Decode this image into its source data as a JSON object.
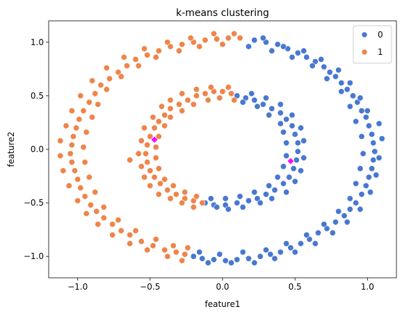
{
  "chart_data": {
    "type": "scatter",
    "title": "k-means clustering",
    "xlabel": "feature1",
    "ylabel": "feature2",
    "xlim": [
      -1.2,
      1.2
    ],
    "ylim": [
      -1.2,
      1.2
    ],
    "xticks": [
      -1.0,
      -0.5,
      0.0,
      0.5,
      1.0
    ],
    "yticks": [
      -1.0,
      -0.5,
      0.0,
      0.5,
      1.0
    ],
    "xtick_labels": [
      "−1.0",
      "−0.5",
      "0.0",
      "0.5",
      "1.0"
    ],
    "ytick_labels": [
      "−1.0",
      "−0.5",
      "0.0",
      "0.5",
      "1.0"
    ],
    "grid": false,
    "legend_position": "top-right",
    "series": [
      {
        "name": "0",
        "color": "#4878d0",
        "points": [
          [
            0.22,
            1.02
          ],
          [
            0.3,
            1.0
          ],
          [
            0.38,
            0.98
          ],
          [
            0.45,
            0.94
          ],
          [
            0.52,
            0.9
          ],
          [
            0.58,
            0.86
          ],
          [
            0.64,
            0.82
          ],
          [
            0.7,
            0.77
          ],
          [
            0.74,
            0.72
          ],
          [
            0.78,
            0.68
          ],
          [
            0.82,
            0.62
          ],
          [
            0.86,
            0.56
          ],
          [
            0.9,
            0.5
          ],
          [
            0.93,
            0.44
          ],
          [
            0.96,
            0.36
          ],
          [
            0.99,
            0.3
          ],
          [
            1.01,
            0.22
          ],
          [
            1.03,
            0.14
          ],
          [
            1.04,
            0.06
          ],
          [
            1.05,
            -0.02
          ],
          [
            1.04,
            -0.1
          ],
          [
            1.03,
            -0.18
          ],
          [
            1.01,
            -0.26
          ],
          [
            0.99,
            -0.34
          ],
          [
            0.96,
            -0.42
          ],
          [
            0.92,
            -0.5
          ],
          [
            0.88,
            -0.56
          ],
          [
            0.84,
            -0.62
          ],
          [
            0.78,
            -0.68
          ],
          [
            0.72,
            -0.74
          ],
          [
            0.66,
            -0.78
          ],
          [
            0.6,
            -0.84
          ],
          [
            0.54,
            -0.88
          ],
          [
            0.47,
            -0.92
          ],
          [
            0.4,
            -0.96
          ],
          [
            0.33,
            -0.98
          ],
          [
            0.26,
            -1.0
          ],
          [
            0.18,
            -1.02
          ],
          [
            0.1,
            -1.03
          ],
          [
            0.02,
            -1.04
          ],
          [
            -0.06,
            -1.03
          ],
          [
            -0.14,
            -1.02
          ],
          [
            -0.2,
            -1.0
          ],
          [
            0.28,
            1.04
          ],
          [
            0.42,
            0.96
          ],
          [
            0.56,
            0.92
          ],
          [
            0.68,
            0.84
          ],
          [
            0.8,
            0.74
          ],
          [
            0.88,
            0.62
          ],
          [
            0.95,
            0.48
          ],
          [
            1.0,
            0.36
          ],
          [
            1.08,
            0.24
          ],
          [
            1.1,
            0.1
          ],
          [
            1.08,
            -0.08
          ],
          [
            1.06,
            -0.24
          ],
          [
            1.02,
            -0.4
          ],
          [
            0.95,
            -0.56
          ],
          [
            0.86,
            -0.68
          ],
          [
            0.76,
            -0.78
          ],
          [
            0.64,
            -0.88
          ],
          [
            0.5,
            -0.96
          ],
          [
            0.36,
            -1.02
          ],
          [
            0.22,
            -1.06
          ],
          [
            0.06,
            -1.06
          ],
          [
            -0.1,
            -1.06
          ],
          [
            0.18,
            0.96
          ],
          [
            0.34,
            0.92
          ],
          [
            0.48,
            0.86
          ],
          [
            0.62,
            0.78
          ],
          [
            0.72,
            0.66
          ],
          [
            0.82,
            0.54
          ],
          [
            0.88,
            0.4
          ],
          [
            0.92,
            0.26
          ],
          [
            0.96,
            0.12
          ],
          [
            0.97,
            -0.04
          ],
          [
            0.95,
            -0.18
          ],
          [
            0.92,
            -0.32
          ],
          [
            0.88,
            -0.46
          ],
          [
            0.8,
            -0.58
          ],
          [
            0.7,
            -0.7
          ],
          [
            0.58,
            -0.8
          ],
          [
            0.44,
            -0.88
          ],
          [
            0.3,
            -0.94
          ],
          [
            0.14,
            -0.96
          ],
          [
            -0.02,
            -0.98
          ],
          [
            -0.16,
            -0.96
          ],
          [
            0.1,
            0.5
          ],
          [
            0.16,
            0.48
          ],
          [
            0.22,
            0.46
          ],
          [
            0.28,
            0.42
          ],
          [
            0.34,
            0.38
          ],
          [
            0.4,
            0.34
          ],
          [
            0.44,
            0.28
          ],
          [
            0.48,
            0.22
          ],
          [
            0.5,
            0.14
          ],
          [
            0.52,
            0.06
          ],
          [
            0.52,
            -0.02
          ],
          [
            0.51,
            -0.1
          ],
          [
            0.49,
            -0.18
          ],
          [
            0.46,
            -0.26
          ],
          [
            0.42,
            -0.32
          ],
          [
            0.36,
            -0.38
          ],
          [
            0.3,
            -0.42
          ],
          [
            0.24,
            -0.46
          ],
          [
            0.18,
            -0.48
          ],
          [
            0.1,
            -0.5
          ],
          [
            0.02,
            -0.52
          ],
          [
            -0.06,
            -0.52
          ],
          [
            -0.12,
            -0.5
          ],
          [
            0.14,
            0.44
          ],
          [
            0.24,
            0.4
          ],
          [
            0.32,
            0.32
          ],
          [
            0.4,
            0.24
          ],
          [
            0.42,
            0.16
          ],
          [
            0.44,
            0.06
          ],
          [
            0.44,
            -0.06
          ],
          [
            0.42,
            -0.16
          ],
          [
            0.38,
            -0.26
          ],
          [
            0.32,
            -0.34
          ],
          [
            0.22,
            -0.4
          ],
          [
            0.12,
            -0.44
          ],
          [
            0.02,
            -0.46
          ],
          [
            -0.08,
            -0.46
          ],
          [
            0.2,
            0.52
          ],
          [
            0.3,
            0.48
          ],
          [
            0.4,
            0.42
          ],
          [
            0.48,
            0.32
          ],
          [
            0.54,
            0.2
          ],
          [
            0.56,
            0.08
          ],
          [
            0.56,
            -0.08
          ],
          [
            0.54,
            -0.2
          ],
          [
            0.5,
            -0.3
          ],
          [
            0.44,
            -0.4
          ],
          [
            0.34,
            -0.46
          ],
          [
            0.26,
            -0.5
          ],
          [
            0.14,
            -0.54
          ],
          [
            0.04,
            -0.56
          ],
          [
            -0.04,
            -0.54
          ]
        ]
      },
      {
        "name": "1",
        "color": "#ee854a",
        "points": [
          [
            0.12,
            1.04
          ],
          [
            0.04,
            1.04
          ],
          [
            -0.04,
            1.03
          ],
          [
            -0.12,
            1.02
          ],
          [
            -0.2,
            1.0
          ],
          [
            -0.28,
            0.98
          ],
          [
            -0.36,
            0.96
          ],
          [
            -0.44,
            0.92
          ],
          [
            -0.52,
            0.88
          ],
          [
            -0.6,
            0.84
          ],
          [
            -0.66,
            0.78
          ],
          [
            -0.72,
            0.72
          ],
          [
            -0.78,
            0.66
          ],
          [
            -0.84,
            0.6
          ],
          [
            -0.88,
            0.52
          ],
          [
            -0.92,
            0.44
          ],
          [
            -0.96,
            0.36
          ],
          [
            -0.99,
            0.28
          ],
          [
            -1.01,
            0.2
          ],
          [
            -1.03,
            0.12
          ],
          [
            -1.04,
            0.04
          ],
          [
            -1.05,
            -0.04
          ],
          [
            -1.04,
            -0.12
          ],
          [
            -1.02,
            -0.2
          ],
          [
            -1.0,
            -0.28
          ],
          [
            -0.98,
            -0.36
          ],
          [
            -0.95,
            -0.44
          ],
          [
            -0.91,
            -0.52
          ],
          [
            -0.87,
            -0.58
          ],
          [
            -0.82,
            -0.64
          ],
          [
            -0.76,
            -0.7
          ],
          [
            -0.7,
            -0.76
          ],
          [
            -0.64,
            -0.8
          ],
          [
            -0.56,
            -0.86
          ],
          [
            -0.48,
            -0.9
          ],
          [
            -0.4,
            -0.94
          ],
          [
            -0.32,
            -0.96
          ],
          [
            -0.26,
            -0.98
          ],
          [
            0.08,
            1.08
          ],
          [
            -0.06,
            1.08
          ],
          [
            -0.22,
            1.04
          ],
          [
            -0.38,
            1.0
          ],
          [
            -0.54,
            0.94
          ],
          [
            -0.68,
            0.86
          ],
          [
            -0.8,
            0.76
          ],
          [
            -0.9,
            0.64
          ],
          [
            -0.98,
            0.5
          ],
          [
            -1.04,
            0.36
          ],
          [
            -1.08,
            0.22
          ],
          [
            -1.12,
            0.08
          ],
          [
            -1.12,
            -0.06
          ],
          [
            -1.1,
            -0.2
          ],
          [
            -1.06,
            -0.34
          ],
          [
            -1.0,
            -0.48
          ],
          [
            -0.94,
            -0.6
          ],
          [
            -0.86,
            -0.7
          ],
          [
            -0.76,
            -0.8
          ],
          [
            -0.64,
            -0.88
          ],
          [
            -0.52,
            -0.94
          ],
          [
            -0.38,
            -1.0
          ],
          [
            -0.28,
            -1.04
          ],
          [
            0.0,
            0.98
          ],
          [
            -0.16,
            0.96
          ],
          [
            -0.3,
            0.92
          ],
          [
            -0.46,
            0.86
          ],
          [
            -0.58,
            0.78
          ],
          [
            -0.7,
            0.68
          ],
          [
            -0.8,
            0.56
          ],
          [
            -0.86,
            0.42
          ],
          [
            -0.9,
            0.3
          ],
          [
            -0.94,
            0.16
          ],
          [
            -0.96,
            0.02
          ],
          [
            -0.95,
            -0.12
          ],
          [
            -0.92,
            -0.26
          ],
          [
            -0.88,
            -0.4
          ],
          [
            -0.82,
            -0.54
          ],
          [
            -0.72,
            -0.66
          ],
          [
            -0.6,
            -0.76
          ],
          [
            -0.46,
            -0.84
          ],
          [
            -0.34,
            -0.9
          ],
          [
            -0.24,
            -0.92
          ],
          [
            0.06,
            0.52
          ],
          [
            0.0,
            0.54
          ],
          [
            -0.06,
            0.54
          ],
          [
            -0.12,
            0.52
          ],
          [
            -0.18,
            0.5
          ],
          [
            -0.24,
            0.46
          ],
          [
            -0.3,
            0.42
          ],
          [
            -0.36,
            0.38
          ],
          [
            -0.4,
            0.32
          ],
          [
            -0.44,
            0.26
          ],
          [
            -0.47,
            0.2
          ],
          [
            -0.5,
            0.12
          ],
          [
            -0.52,
            0.04
          ],
          [
            -0.53,
            -0.04
          ],
          [
            -0.52,
            -0.12
          ],
          [
            -0.5,
            -0.2
          ],
          [
            -0.47,
            -0.26
          ],
          [
            -0.43,
            -0.32
          ],
          [
            -0.38,
            -0.38
          ],
          [
            -0.32,
            -0.42
          ],
          [
            -0.26,
            -0.46
          ],
          [
            -0.2,
            -0.48
          ],
          [
            -0.14,
            -0.5
          ],
          [
            0.08,
            0.46
          ],
          [
            -0.02,
            0.48
          ],
          [
            -0.1,
            0.46
          ],
          [
            -0.2,
            0.42
          ],
          [
            -0.28,
            0.36
          ],
          [
            -0.36,
            0.3
          ],
          [
            -0.4,
            0.22
          ],
          [
            -0.44,
            0.12
          ],
          [
            -0.46,
            0.02
          ],
          [
            -0.46,
            -0.08
          ],
          [
            -0.44,
            -0.18
          ],
          [
            -0.4,
            -0.28
          ],
          [
            -0.34,
            -0.34
          ],
          [
            -0.26,
            -0.4
          ],
          [
            -0.18,
            -0.44
          ],
          [
            0.04,
            0.58
          ],
          [
            -0.08,
            0.58
          ],
          [
            -0.18,
            0.56
          ],
          [
            -0.28,
            0.52
          ],
          [
            -0.36,
            0.46
          ],
          [
            -0.42,
            0.4
          ],
          [
            -0.48,
            0.3
          ],
          [
            -0.54,
            0.2
          ],
          [
            -0.56,
            0.08
          ],
          [
            -0.58,
            -0.04
          ],
          [
            -0.56,
            -0.16
          ],
          [
            -0.54,
            -0.26
          ],
          [
            -0.5,
            -0.34
          ],
          [
            -0.44,
            -0.42
          ],
          [
            -0.36,
            -0.46
          ],
          [
            -0.28,
            -0.5
          ],
          [
            -0.2,
            -0.54
          ],
          [
            -0.64,
            -0.1
          ]
        ]
      }
    ],
    "centroids": {
      "color": "#ff00ff",
      "points": [
        [
          -0.47,
          0.09
        ],
        [
          0.47,
          -0.11
        ]
      ]
    }
  }
}
